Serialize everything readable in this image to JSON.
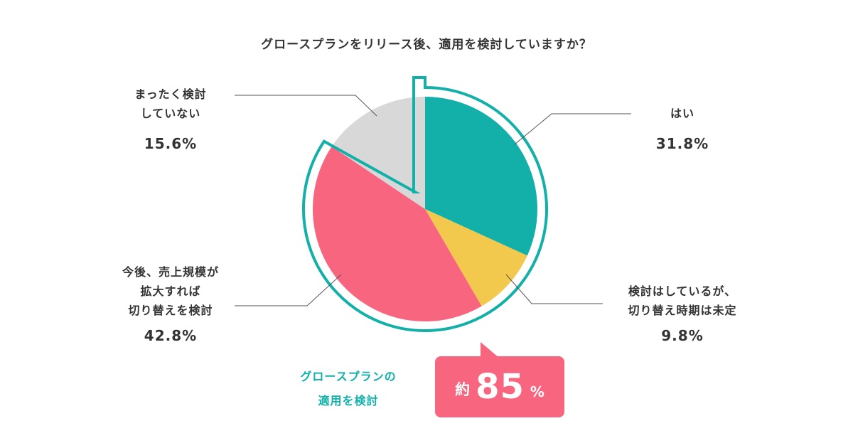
{
  "title": "グロースプランをリリース後、適用を検討していますか？",
  "chart_data": {
    "type": "pie",
    "title": "グロースプランをリリース後、適用を検討していますか？",
    "unit": "%",
    "slices": [
      {
        "label": "はい",
        "value": 31.8,
        "display": "31.8%",
        "color": "#12b0a8"
      },
      {
        "label": "検討はしているが、切り替え時期は未定",
        "label_lines": [
          "検討はしているが、",
          "切り替え時期は未定"
        ],
        "value": 9.8,
        "display": "9.8%",
        "color": "#f2c94c"
      },
      {
        "label": "今後、売上規模が拡大すれば切り替えを検討",
        "label_lines": [
          "今後、売上規模が",
          "拡大すれば",
          "切り替えを検討"
        ],
        "value": 42.8,
        "display": "42.8%",
        "color": "#f7657f"
      },
      {
        "label": "まったく検討していない",
        "label_lines": [
          "まったく検討",
          "していない"
        ],
        "value": 15.6,
        "display": "15.6%",
        "color": "#d8d8d8"
      }
    ],
    "highlight": {
      "text_lines": [
        "グロースプランの",
        "適用を検討"
      ],
      "badge_prefix": "約",
      "badge_value": "85",
      "badge_unit": "%",
      "color": "#12b0a8",
      "badge_color": "#f7657f"
    }
  }
}
